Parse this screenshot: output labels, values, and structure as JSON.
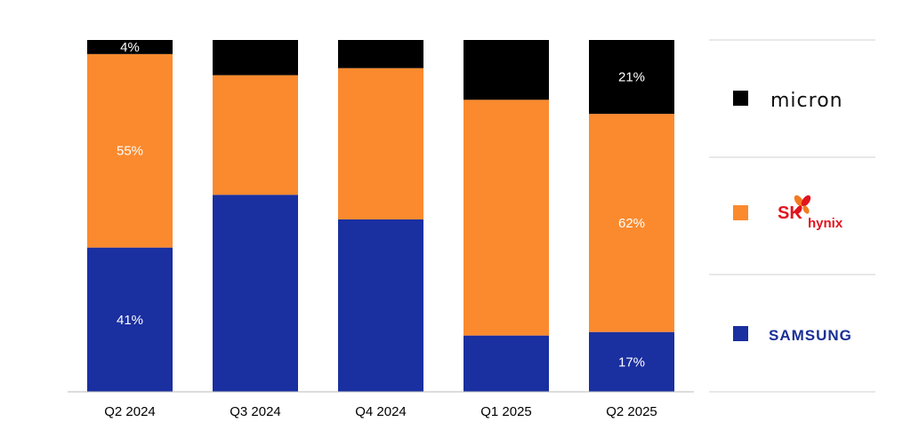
{
  "chart_data": {
    "type": "bar",
    "stacked": true,
    "normalized": true,
    "categories": [
      "Q2 2024",
      "Q3 2024",
      "Q4 2024",
      "Q1 2025",
      "Q2 2025"
    ],
    "series": [
      {
        "name": "SAMSUNG",
        "color": "#1a2fa0",
        "values": [
          41,
          56,
          49,
          16,
          17
        ]
      },
      {
        "name": "SK hynix",
        "color": "#fb8a2e",
        "values": [
          55,
          34,
          43,
          67,
          62
        ]
      },
      {
        "name": "micron",
        "color": "#000000",
        "values": [
          4,
          10,
          8,
          17,
          21
        ]
      }
    ],
    "data_labels": [
      {
        "category": "Q2 2024",
        "series": "micron",
        "text": "4%"
      },
      {
        "category": "Q2 2024",
        "series": "SK hynix",
        "text": "55%"
      },
      {
        "category": "Q2 2024",
        "series": "SAMSUNG",
        "text": "41%"
      },
      {
        "category": "Q2 2025",
        "series": "micron",
        "text": "21%"
      },
      {
        "category": "Q2 2025",
        "series": "SK hynix",
        "text": "62%"
      },
      {
        "category": "Q2 2025",
        "series": "SAMSUNG",
        "text": "17%"
      }
    ],
    "ylim": [
      0,
      100
    ],
    "grid": false,
    "legend_position": "right",
    "legend": [
      {
        "key": "micron",
        "text": "micron",
        "color": "#000000"
      },
      {
        "key": "skhynix",
        "text_sk": "SK",
        "text_hynix": "hynix",
        "color": "#fb8a2e"
      },
      {
        "key": "samsung",
        "text": "SAMSUNG",
        "color": "#1a2fa0"
      }
    ]
  }
}
